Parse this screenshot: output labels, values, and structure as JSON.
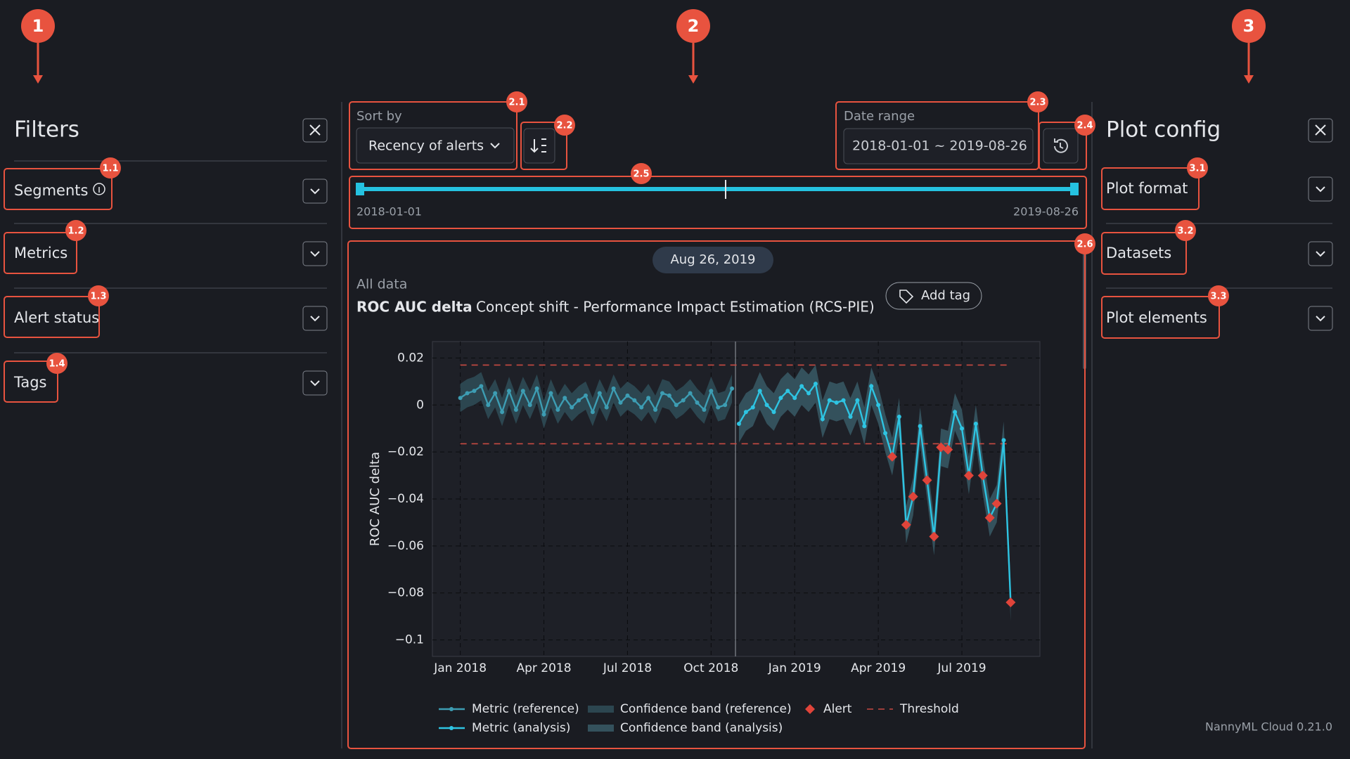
{
  "annotations": [
    "1",
    "2",
    "3",
    "1.1",
    "1.2",
    "1.3",
    "1.4",
    "2.1",
    "2.2",
    "2.3",
    "2.4",
    "2.5",
    "2.6",
    "3.1",
    "3.2",
    "3.3"
  ],
  "filters": {
    "title": "Filters",
    "items": [
      "Segments",
      "Metrics",
      "Alert status",
      "Tags"
    ]
  },
  "toolbar": {
    "sort_label": "Sort by",
    "sort_value": "Recency of alerts",
    "date_label": "Date range",
    "date_value": "2018-01-01 ~ 2019-08-26",
    "slider_start": "2018-01-01",
    "slider_end": "2019-08-26"
  },
  "plot": {
    "date_badge": "Aug 26, 2019",
    "dataset": "All data",
    "metric": "ROC AUC delta",
    "method": "Concept shift - Performance Impact Estimation (RCS-PIE)",
    "add_tag": "Add tag",
    "chart_data": {
      "type": "line",
      "y_label": "ROC AUC delta",
      "xlim": [
        -1.0,
        20.8
      ],
      "ylim": [
        -0.107,
        0.027
      ],
      "xticks": [
        {
          "value": 0,
          "label": "Jan 2018"
        },
        {
          "value": 3,
          "label": "Apr 2018"
        },
        {
          "value": 6,
          "label": "Jul 2018"
        },
        {
          "value": 9,
          "label": "Oct 2018"
        },
        {
          "value": 12,
          "label": "Jan 2019"
        },
        {
          "value": 15,
          "label": "Apr 2019"
        },
        {
          "value": 18,
          "label": "Jul 2019"
        }
      ],
      "yticks": [
        0.02,
        0,
        {
          "value": -0.02,
          "label": "−0.02"
        },
        {
          "value": -0.04,
          "label": "−0.04"
        },
        {
          "value": -0.06,
          "label": "−0.06"
        },
        {
          "value": -0.08,
          "label": "−0.08"
        },
        {
          "value": -0.1,
          "label": "−0.1"
        }
      ],
      "grid": true,
      "thresholds": {
        "label": "Threshold",
        "upper": 0.017,
        "lower": -0.0165,
        "color": "#c94a42"
      },
      "alert": {
        "label": "Alert",
        "color": "#e0443a"
      },
      "series": [
        {
          "name": "Metric (reference)",
          "color": "#3d9db3",
          "band_name": "Confidence band (reference)",
          "band_color": "#2c4650",
          "band_halfwidth": 0.006,
          "x": [
            0,
            0.25,
            0.5,
            0.75,
            1,
            1.25,
            1.5,
            1.75,
            2,
            2.25,
            2.5,
            2.75,
            3,
            3.25,
            3.5,
            3.75,
            4,
            4.25,
            4.5,
            4.75,
            5,
            5.25,
            5.5,
            5.75,
            6,
            6.25,
            6.5,
            6.75,
            7,
            7.25,
            7.5,
            7.75,
            8,
            8.25,
            8.5,
            8.75,
            9,
            9.25,
            9.5,
            9.75
          ],
          "values": [
            0.003,
            0.005,
            0.006,
            0.008,
            0.0,
            0.005,
            -0.003,
            0.006,
            -0.002,
            0.006,
            0.0,
            0.007,
            -0.004,
            0.005,
            -0.002,
            0.003,
            -0.001,
            0.002,
            0.004,
            -0.003,
            0.005,
            -0.001,
            0.007,
            0.001,
            0.004,
            0.002,
            -0.001,
            0.003,
            -0.002,
            0.005,
            0.004,
            0.0,
            0.002,
            0.005,
            0.001,
            -0.002,
            0.006,
            -0.001,
            0.0,
            0.007
          ]
        },
        {
          "name": "Metric (analysis)",
          "color": "#2ec4e2",
          "band_name": "Confidence band (analysis)",
          "band_color": "#34515c",
          "band_halfwidth": 0.008,
          "x": [
            10,
            10.25,
            10.5,
            10.75,
            11,
            11.25,
            11.5,
            11.75,
            12,
            12.25,
            12.5,
            12.75,
            13,
            13.25,
            13.5,
            13.75,
            14,
            14.25,
            14.5,
            14.75,
            15,
            15.25,
            15.5,
            15.75,
            16,
            16.25,
            16.5,
            16.75,
            17,
            17.25,
            17.5,
            17.75,
            18,
            18.25,
            18.5,
            18.75,
            19,
            19.25,
            19.5,
            19.75
          ],
          "values": [
            -0.008,
            -0.003,
            -0.001,
            0.006,
            0.0,
            -0.003,
            0.003,
            0.006,
            0.003,
            0.008,
            0.005,
            0.009,
            -0.006,
            0.002,
            0.001,
            0.002,
            -0.005,
            0.002,
            -0.009,
            0.008,
            0.0,
            -0.012,
            -0.022,
            -0.005,
            -0.051,
            -0.039,
            -0.009,
            -0.032,
            -0.056,
            -0.018,
            -0.019,
            -0.003,
            -0.01,
            -0.03,
            -0.008,
            -0.03,
            -0.048,
            -0.042,
            -0.015,
            -0.084
          ]
        }
      ]
    }
  },
  "plot_config": {
    "title": "Plot config",
    "items": [
      "Plot format",
      "Datasets",
      "Plot elements"
    ]
  },
  "footer": "NannyML Cloud 0.21.0"
}
